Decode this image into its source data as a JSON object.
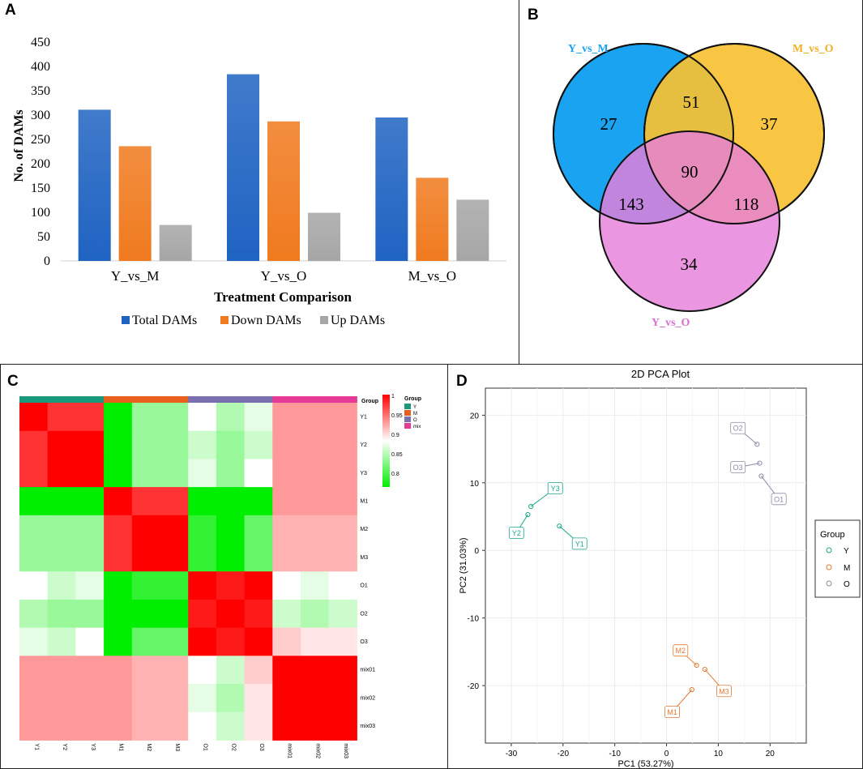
{
  "panels": {
    "a": "A",
    "b": "B",
    "c": "C",
    "d": "D"
  },
  "chart_data": [
    {
      "type": "bar",
      "title": "",
      "xlabel": "Treatment Comparison",
      "ylabel": "No. of DAMs",
      "ylim": [
        0,
        450
      ],
      "yticks": [
        0,
        50,
        100,
        150,
        200,
        250,
        300,
        350,
        400,
        450
      ],
      "categories": [
        "Y_vs_M",
        "Y_vs_O",
        "M_vs_O"
      ],
      "series": [
        {
          "name": "Total DAMs",
          "color": "#1f63c2",
          "values": [
            311,
            384,
            295
          ]
        },
        {
          "name": "Down DAMs",
          "color": "#f07a1e",
          "values": [
            236,
            287,
            171
          ]
        },
        {
          "name": "Up DAMs",
          "color": "#a6a6a6",
          "values": [
            74,
            99,
            126
          ]
        }
      ],
      "legend": "bottom"
    },
    {
      "type": "venn",
      "sets": [
        {
          "name": "Y_vs_M",
          "color": "#1aa3f0"
        },
        {
          "name": "M_vs_O",
          "color": "#f7c132"
        },
        {
          "name": "Y_vs_O",
          "color": "#e77fd9"
        }
      ],
      "regions": {
        "Y_vs_M_only": "27",
        "M_vs_O_only": "37",
        "Y_vs_O_only": "34",
        "Y_vs_M&M_vs_O": "51",
        "Y_vs_M&Y_vs_O": "143",
        "M_vs_O&Y_vs_O": "118",
        "all": "90"
      }
    },
    {
      "type": "heatmap",
      "labels": [
        "Y1",
        "Y2",
        "Y3",
        "M1",
        "M2",
        "M3",
        "O1",
        "O2",
        "O3",
        "mix01",
        "mix02",
        "mix03"
      ],
      "groups": [
        "Y",
        "Y",
        "Y",
        "M",
        "M",
        "M",
        "O",
        "O",
        "O",
        "mix",
        "mix",
        "mix"
      ],
      "group_colors": {
        "Y": "#1a9a7a",
        "M": "#e8611c",
        "O": "#7a6fb0",
        "mix": "#e73a96"
      },
      "colorbar_title": "Group",
      "legend_title": "Group",
      "legend_items": [
        "Y",
        "M",
        "O",
        "mix"
      ],
      "color_range": [
        0.8,
        1
      ],
      "colorbar_ticks": [
        "1",
        "0.95",
        "0.9",
        "0.85",
        "0.8"
      ],
      "matrix": [
        [
          1.0,
          0.98,
          0.98,
          0.8,
          0.86,
          0.86,
          0.9,
          0.87,
          0.89,
          0.94,
          0.94,
          0.94
        ],
        [
          0.98,
          1.0,
          1.0,
          0.8,
          0.86,
          0.86,
          0.88,
          0.86,
          0.88,
          0.94,
          0.94,
          0.94
        ],
        [
          0.98,
          1.0,
          1.0,
          0.8,
          0.86,
          0.86,
          0.89,
          0.86,
          0.9,
          0.94,
          0.94,
          0.94
        ],
        [
          0.8,
          0.8,
          0.8,
          1.0,
          0.98,
          0.98,
          0.78,
          0.78,
          0.8,
          0.94,
          0.94,
          0.94
        ],
        [
          0.86,
          0.86,
          0.86,
          0.98,
          1.0,
          1.0,
          0.82,
          0.79,
          0.84,
          0.93,
          0.93,
          0.93
        ],
        [
          0.86,
          0.86,
          0.86,
          0.98,
          1.0,
          1.0,
          0.82,
          0.79,
          0.84,
          0.93,
          0.93,
          0.93
        ],
        [
          0.9,
          0.88,
          0.89,
          0.78,
          0.82,
          0.82,
          1.0,
          0.99,
          1.0,
          0.9,
          0.89,
          0.9
        ],
        [
          0.87,
          0.86,
          0.86,
          0.78,
          0.79,
          0.79,
          0.99,
          1.0,
          0.99,
          0.88,
          0.87,
          0.88
        ],
        [
          0.89,
          0.88,
          0.9,
          0.8,
          0.84,
          0.84,
          1.0,
          0.99,
          1.0,
          0.92,
          0.91,
          0.91
        ],
        [
          0.94,
          0.94,
          0.94,
          0.94,
          0.93,
          0.93,
          0.9,
          0.88,
          0.92,
          1.0,
          1.0,
          1.0
        ],
        [
          0.94,
          0.94,
          0.94,
          0.94,
          0.93,
          0.93,
          0.89,
          0.87,
          0.91,
          1.0,
          1.0,
          1.0
        ],
        [
          0.94,
          0.94,
          0.94,
          0.94,
          0.93,
          0.93,
          0.9,
          0.88,
          0.91,
          1.0,
          1.0,
          1.0
        ]
      ]
    },
    {
      "type": "scatter",
      "title": "2D PCA Plot",
      "xlabel": "PC1 (53.27%)",
      "ylabel": "PC2 (31.03%)",
      "xlim": [
        -35,
        27
      ],
      "ylim": [
        -28.5,
        24
      ],
      "xticks": [
        -30,
        -20,
        -10,
        0,
        10,
        20
      ],
      "yticks": [
        -20,
        -10,
        0,
        10,
        20
      ],
      "legend_title": "Group",
      "groups": [
        {
          "name": "Y",
          "color": "#1aa68a"
        },
        {
          "name": "M",
          "color": "#e07a33"
        },
        {
          "name": "O",
          "color": "#8f8aa8"
        }
      ],
      "points": [
        {
          "label": "Y1",
          "group": "Y",
          "x": -20.7,
          "y": 3.6,
          "lx": -16.8,
          "ly": 1.0
        },
        {
          "label": "Y2",
          "group": "Y",
          "x": -26.8,
          "y": 5.3,
          "lx": -29.0,
          "ly": 2.6
        },
        {
          "label": "Y3",
          "group": "Y",
          "x": -26.2,
          "y": 6.5,
          "lx": -21.5,
          "ly": 9.2
        },
        {
          "label": "M1",
          "group": "M",
          "x": 4.9,
          "y": -20.6,
          "lx": 1.1,
          "ly": -23.9
        },
        {
          "label": "M2",
          "group": "M",
          "x": 5.8,
          "y": -17.0,
          "lx": 2.7,
          "ly": -14.8
        },
        {
          "label": "M3",
          "group": "M",
          "x": 7.4,
          "y": -17.6,
          "lx": 11.1,
          "ly": -20.8
        },
        {
          "label": "O1",
          "group": "O",
          "x": 18.3,
          "y": 11.0,
          "lx": 21.7,
          "ly": 7.6
        },
        {
          "label": "O2",
          "group": "O",
          "x": 17.5,
          "y": 15.7,
          "lx": 13.8,
          "ly": 18.1
        },
        {
          "label": "O3",
          "group": "O",
          "x": 18.0,
          "y": 12.9,
          "lx": 13.8,
          "ly": 12.3
        }
      ]
    }
  ]
}
